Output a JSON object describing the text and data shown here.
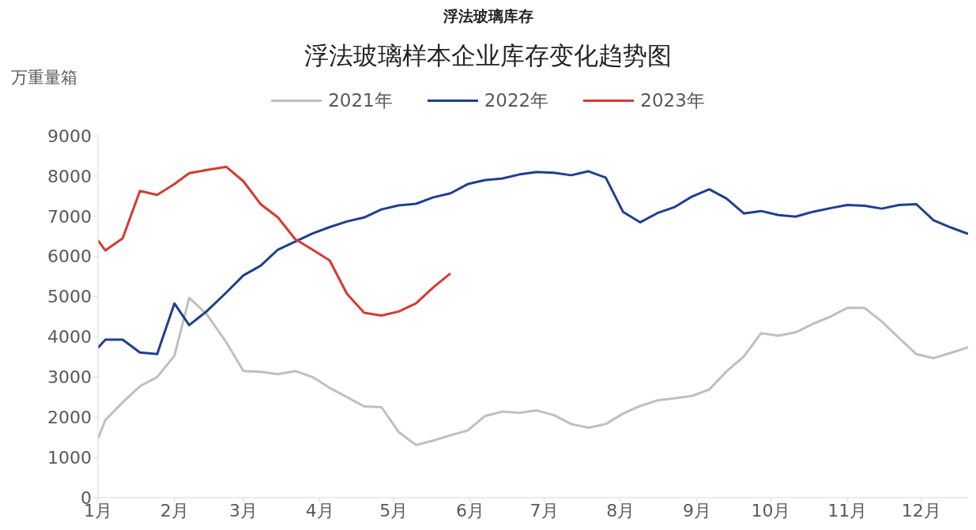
{
  "chart_data": {
    "type": "line",
    "title": "浮法玻璃库存",
    "subtitle": "浮法玻璃样本企业库存变化趋势图",
    "ylabel": "万重量箱",
    "x": [
      "--01-01",
      "--01-04",
      "--01-11",
      "--01-18",
      "--01-25",
      "--02-01",
      "--02-07",
      "--02-14",
      "--02-22",
      "--03-01",
      "--03-08",
      "--03-15",
      "--03-22",
      "--03-29",
      "--04-05",
      "--04-12",
      "--04-19",
      "--04-26",
      "--05-03",
      "--05-10",
      "--05-17",
      "--05-24",
      "--05-31",
      "--06-07",
      "--06-14",
      "--06-21",
      "--06-28",
      "--07-05",
      "--07-12",
      "--07-19",
      "--07-26",
      "--08-02",
      "--08-09",
      "--08-16",
      "--08-23",
      "--08-30",
      "--09-06",
      "--09-13",
      "--09-20",
      "--09-27",
      "--10-04",
      "--10-11",
      "--10-18",
      "--10-25",
      "--11-01",
      "--11-08",
      "--11-15",
      "--11-22",
      "--11-29",
      "--12-06",
      "--12-13",
      "--12-20"
    ],
    "series": [
      {
        "name": "2021年",
        "color": "#bfbfbf",
        "values": [
          1470,
          1930,
          2370,
          2770,
          3000,
          3530,
          4970,
          4570,
          3870,
          3150,
          3130,
          3070,
          3150,
          3000,
          2730,
          2500,
          2270,
          2250,
          1630,
          1310,
          1420,
          1550,
          1670,
          2030,
          2140,
          2110,
          2170,
          2050,
          1830,
          1740,
          1830,
          2090,
          2280,
          2420,
          2470,
          2530,
          2690,
          3140,
          3510,
          4090,
          4030,
          4110,
          4320,
          4500,
          4720,
          4720,
          4380,
          3970,
          3570,
          3470,
          3600,
          3740
        ]
      },
      {
        "name": "2022年",
        "color": "#1f3f8f",
        "values": [
          3730,
          3930,
          3930,
          3610,
          3570,
          4830,
          4290,
          4630,
          5100,
          5530,
          5770,
          6170,
          6370,
          6570,
          6730,
          6870,
          6970,
          7170,
          7270,
          7310,
          7470,
          7570,
          7800,
          7900,
          7940,
          8040,
          8100,
          8080,
          8020,
          8120,
          7960,
          7110,
          6850,
          7080,
          7230,
          7490,
          7670,
          7440,
          7070,
          7130,
          7030,
          6990,
          7110,
          7200,
          7280,
          7260,
          7190,
          7280,
          7300,
          6900,
          6720,
          6560
        ]
      },
      {
        "name": "2023年",
        "color": "#d63a2f",
        "values": [
          6400,
          6150,
          6450,
          7630,
          7530,
          7800,
          8070,
          8150,
          8230,
          7870,
          7300,
          6970,
          6430,
          6170,
          5900,
          5070,
          4600,
          4530,
          4630,
          4830,
          5230,
          5580,
          null,
          null,
          null,
          null,
          null,
          null,
          null,
          null,
          null,
          null,
          null,
          null,
          null,
          null,
          null,
          null,
          null,
          null,
          null,
          null,
          null,
          null,
          null,
          null,
          null,
          null,
          null,
          null,
          null,
          null
        ]
      }
    ],
    "xlim": [
      "--01-01",
      "--12-20"
    ],
    "xticks": [
      {
        "value": "--01-01",
        "label": "1月"
      },
      {
        "value": "--02-01",
        "label": "2月"
      },
      {
        "value": "--03-01",
        "label": "3月"
      },
      {
        "value": "--04-01",
        "label": "4月"
      },
      {
        "value": "--05-01",
        "label": "5月"
      },
      {
        "value": "--06-01",
        "label": "6月"
      },
      {
        "value": "--07-01",
        "label": "7月"
      },
      {
        "value": "--08-01",
        "label": "8月"
      },
      {
        "value": "--09-01",
        "label": "9月"
      },
      {
        "value": "--10-01",
        "label": "10月"
      },
      {
        "value": "--11-01",
        "label": "11月"
      },
      {
        "value": "--12-01",
        "label": "12月"
      }
    ],
    "ylim": [
      0,
      9000
    ],
    "yticks": [
      0,
      1000,
      2000,
      3000,
      4000,
      5000,
      6000,
      7000,
      8000,
      9000
    ],
    "grid": false,
    "legend": "top",
    "marker": "none",
    "line_style": "solid"
  }
}
